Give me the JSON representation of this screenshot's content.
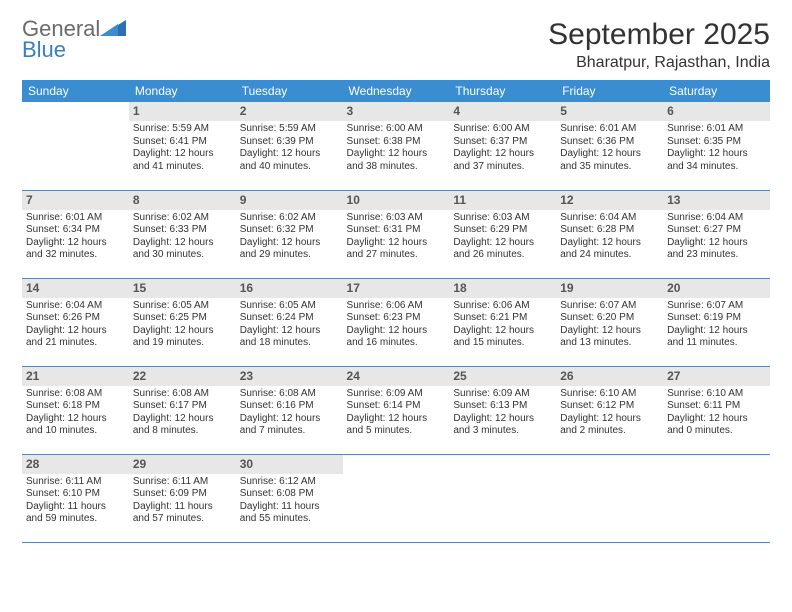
{
  "logo": {
    "word1": "General",
    "word2": "Blue"
  },
  "title": "September 2025",
  "location": "Bharatpur, Rajasthan, India",
  "weekday_header_bg": "#3a8dd0",
  "weekday_header_fg": "#ffffff",
  "daynum_bg": "#e7e7e7",
  "row_border_color": "#3a8dd0",
  "weekdays": [
    "Sunday",
    "Monday",
    "Tuesday",
    "Wednesday",
    "Thursday",
    "Friday",
    "Saturday"
  ],
  "weeks": [
    [
      null,
      {
        "n": "1",
        "sr": "Sunrise: 5:59 AM",
        "ss": "Sunset: 6:41 PM",
        "d1": "Daylight: 12 hours",
        "d2": "and 41 minutes."
      },
      {
        "n": "2",
        "sr": "Sunrise: 5:59 AM",
        "ss": "Sunset: 6:39 PM",
        "d1": "Daylight: 12 hours",
        "d2": "and 40 minutes."
      },
      {
        "n": "3",
        "sr": "Sunrise: 6:00 AM",
        "ss": "Sunset: 6:38 PM",
        "d1": "Daylight: 12 hours",
        "d2": "and 38 minutes."
      },
      {
        "n": "4",
        "sr": "Sunrise: 6:00 AM",
        "ss": "Sunset: 6:37 PM",
        "d1": "Daylight: 12 hours",
        "d2": "and 37 minutes."
      },
      {
        "n": "5",
        "sr": "Sunrise: 6:01 AM",
        "ss": "Sunset: 6:36 PM",
        "d1": "Daylight: 12 hours",
        "d2": "and 35 minutes."
      },
      {
        "n": "6",
        "sr": "Sunrise: 6:01 AM",
        "ss": "Sunset: 6:35 PM",
        "d1": "Daylight: 12 hours",
        "d2": "and 34 minutes."
      }
    ],
    [
      {
        "n": "7",
        "sr": "Sunrise: 6:01 AM",
        "ss": "Sunset: 6:34 PM",
        "d1": "Daylight: 12 hours",
        "d2": "and 32 minutes."
      },
      {
        "n": "8",
        "sr": "Sunrise: 6:02 AM",
        "ss": "Sunset: 6:33 PM",
        "d1": "Daylight: 12 hours",
        "d2": "and 30 minutes."
      },
      {
        "n": "9",
        "sr": "Sunrise: 6:02 AM",
        "ss": "Sunset: 6:32 PM",
        "d1": "Daylight: 12 hours",
        "d2": "and 29 minutes."
      },
      {
        "n": "10",
        "sr": "Sunrise: 6:03 AM",
        "ss": "Sunset: 6:31 PM",
        "d1": "Daylight: 12 hours",
        "d2": "and 27 minutes."
      },
      {
        "n": "11",
        "sr": "Sunrise: 6:03 AM",
        "ss": "Sunset: 6:29 PM",
        "d1": "Daylight: 12 hours",
        "d2": "and 26 minutes."
      },
      {
        "n": "12",
        "sr": "Sunrise: 6:04 AM",
        "ss": "Sunset: 6:28 PM",
        "d1": "Daylight: 12 hours",
        "d2": "and 24 minutes."
      },
      {
        "n": "13",
        "sr": "Sunrise: 6:04 AM",
        "ss": "Sunset: 6:27 PM",
        "d1": "Daylight: 12 hours",
        "d2": "and 23 minutes."
      }
    ],
    [
      {
        "n": "14",
        "sr": "Sunrise: 6:04 AM",
        "ss": "Sunset: 6:26 PM",
        "d1": "Daylight: 12 hours",
        "d2": "and 21 minutes."
      },
      {
        "n": "15",
        "sr": "Sunrise: 6:05 AM",
        "ss": "Sunset: 6:25 PM",
        "d1": "Daylight: 12 hours",
        "d2": "and 19 minutes."
      },
      {
        "n": "16",
        "sr": "Sunrise: 6:05 AM",
        "ss": "Sunset: 6:24 PM",
        "d1": "Daylight: 12 hours",
        "d2": "and 18 minutes."
      },
      {
        "n": "17",
        "sr": "Sunrise: 6:06 AM",
        "ss": "Sunset: 6:23 PM",
        "d1": "Daylight: 12 hours",
        "d2": "and 16 minutes."
      },
      {
        "n": "18",
        "sr": "Sunrise: 6:06 AM",
        "ss": "Sunset: 6:21 PM",
        "d1": "Daylight: 12 hours",
        "d2": "and 15 minutes."
      },
      {
        "n": "19",
        "sr": "Sunrise: 6:07 AM",
        "ss": "Sunset: 6:20 PM",
        "d1": "Daylight: 12 hours",
        "d2": "and 13 minutes."
      },
      {
        "n": "20",
        "sr": "Sunrise: 6:07 AM",
        "ss": "Sunset: 6:19 PM",
        "d1": "Daylight: 12 hours",
        "d2": "and 11 minutes."
      }
    ],
    [
      {
        "n": "21",
        "sr": "Sunrise: 6:08 AM",
        "ss": "Sunset: 6:18 PM",
        "d1": "Daylight: 12 hours",
        "d2": "and 10 minutes."
      },
      {
        "n": "22",
        "sr": "Sunrise: 6:08 AM",
        "ss": "Sunset: 6:17 PM",
        "d1": "Daylight: 12 hours",
        "d2": "and 8 minutes."
      },
      {
        "n": "23",
        "sr": "Sunrise: 6:08 AM",
        "ss": "Sunset: 6:16 PM",
        "d1": "Daylight: 12 hours",
        "d2": "and 7 minutes."
      },
      {
        "n": "24",
        "sr": "Sunrise: 6:09 AM",
        "ss": "Sunset: 6:14 PM",
        "d1": "Daylight: 12 hours",
        "d2": "and 5 minutes."
      },
      {
        "n": "25",
        "sr": "Sunrise: 6:09 AM",
        "ss": "Sunset: 6:13 PM",
        "d1": "Daylight: 12 hours",
        "d2": "and 3 minutes."
      },
      {
        "n": "26",
        "sr": "Sunrise: 6:10 AM",
        "ss": "Sunset: 6:12 PM",
        "d1": "Daylight: 12 hours",
        "d2": "and 2 minutes."
      },
      {
        "n": "27",
        "sr": "Sunrise: 6:10 AM",
        "ss": "Sunset: 6:11 PM",
        "d1": "Daylight: 12 hours",
        "d2": "and 0 minutes."
      }
    ],
    [
      {
        "n": "28",
        "sr": "Sunrise: 6:11 AM",
        "ss": "Sunset: 6:10 PM",
        "d1": "Daylight: 11 hours",
        "d2": "and 59 minutes."
      },
      {
        "n": "29",
        "sr": "Sunrise: 6:11 AM",
        "ss": "Sunset: 6:09 PM",
        "d1": "Daylight: 11 hours",
        "d2": "and 57 minutes."
      },
      {
        "n": "30",
        "sr": "Sunrise: 6:12 AM",
        "ss": "Sunset: 6:08 PM",
        "d1": "Daylight: 11 hours",
        "d2": "and 55 minutes."
      },
      null,
      null,
      null,
      null
    ]
  ]
}
